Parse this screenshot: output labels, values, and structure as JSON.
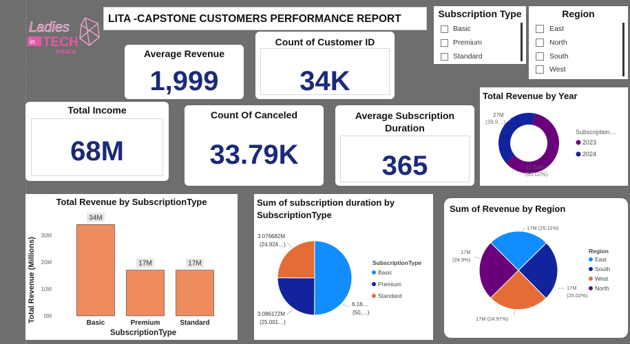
{
  "report_title": "LITA -CAPSTONE CUSTOMERS PERFORMANCE REPORT",
  "logo": {
    "line1": "Ladies",
    "line2_a": "in",
    "line2_b": "TECH",
    "line3": "AFRICA"
  },
  "kpis": {
    "avg_revenue": {
      "label": "Average Revenue",
      "value": "1,999"
    },
    "customer_count": {
      "label": "Count of Customer ID",
      "value": "34K"
    },
    "total_income": {
      "label": "Total Income",
      "value": "68M"
    },
    "canceled": {
      "label": "Count Of Canceled",
      "value": "33.79K"
    },
    "avg_duration": {
      "label": "Average Subscription Duration",
      "value": "365"
    }
  },
  "slicers": {
    "subscription": {
      "title": "Subscription Type",
      "options": [
        "Basic",
        "Premium",
        "Standard"
      ]
    },
    "region": {
      "title": "Region",
      "options": [
        "East",
        "North",
        "South",
        "West"
      ]
    }
  },
  "colors": {
    "bar": "#ef8c5e",
    "blue": "#118dff",
    "navy": "#12239e",
    "orange": "#e66c37",
    "purple": "#6b007b",
    "kpi": "#1b2a78"
  },
  "chart_data": [
    {
      "type": "bar",
      "title": "Total Revenue by SubscriptionType",
      "xlabel": "SubscriptionType",
      "ylabel": "Total Revenue (Millions)",
      "categories": [
        "Basic",
        "Premium",
        "Standard"
      ],
      "values": [
        34,
        17,
        17
      ],
      "data_labels": [
        "34M",
        "17M",
        "17M"
      ],
      "y_ticks": [
        "0M",
        "10M",
        "20M",
        "30M"
      ],
      "ylim": [
        0,
        40
      ]
    },
    {
      "type": "pie",
      "title": "Sum of subscription duration by SubscriptionType",
      "legend_title": "SubscriptionType",
      "categories": [
        "Basic",
        "Premium",
        "Standard"
      ],
      "values": [
        50.1,
        25.0,
        24.9
      ],
      "data_labels": [
        {
          "line1": "6.18…",
          "line2": "(50,…)"
        },
        {
          "line1": "3.086172M",
          "line2": "(25.001…)"
        },
        {
          "line1": "3.076682M",
          "line2": "(24.924…)"
        }
      ]
    },
    {
      "type": "pie",
      "donut": true,
      "title": "Total Revenue by Year",
      "legend_title": "Subscription…",
      "categories": [
        "2023",
        "2024"
      ],
      "values": [
        60.02,
        39.98
      ],
      "data_labels": [
        {
          "line1": "40.54M",
          "line2": "(60.02%)"
        },
        {
          "line1": "27M",
          "line2": "(39.9…)"
        }
      ]
    },
    {
      "type": "pie",
      "title": "Sum of Revenue by Region",
      "legend_title": "Region",
      "categories": [
        "East",
        "South",
        "West",
        "North"
      ],
      "values": [
        25.11,
        25.02,
        24.97,
        24.9
      ],
      "data_labels": [
        "17M (25.11%)",
        "17M (25.02%)",
        "17M (24.97%)",
        "17M (24.9%)"
      ],
      "label_split": [
        {
          "line1": "17M (25.11%)",
          "line2": ""
        },
        {
          "line1": "17M",
          "line2": "(25.02%)"
        },
        {
          "line1": "17M (24.97%)",
          "line2": ""
        },
        {
          "line1": "17M",
          "line2": "(24.9%)"
        }
      ]
    }
  ]
}
